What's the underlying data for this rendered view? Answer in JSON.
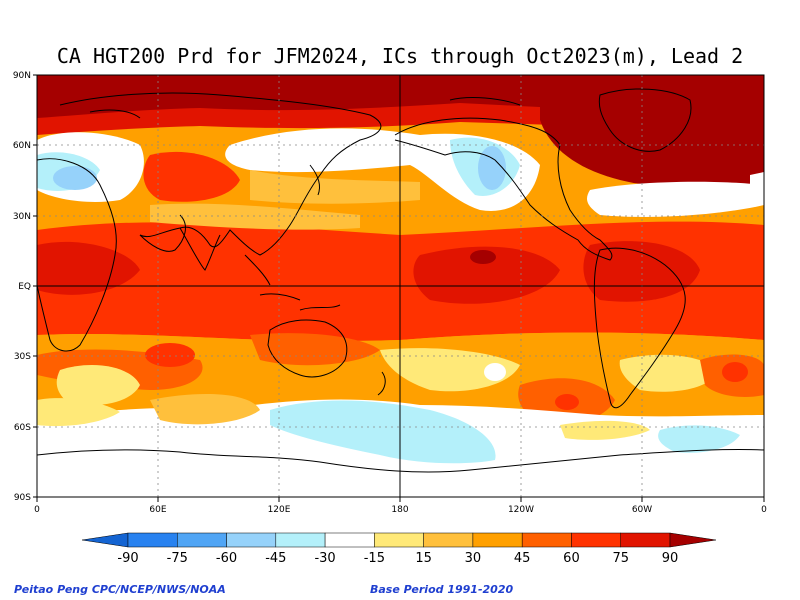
{
  "title": "CA HGT200 Prd for JFM2024, ICs through Oct2023(m), Lead 2",
  "credit_left": "Peitao Peng CPC/NCEP/NWS/NOAA",
  "credit_right": "Base Period 1991-2020",
  "lat_labels": [
    "90N",
    "60N",
    "30N",
    "EQ",
    "30S",
    "60S",
    "90S"
  ],
  "lon_labels": [
    "0",
    "60E",
    "120E",
    "180",
    "120W",
    "60W",
    "0"
  ],
  "colorbar": {
    "labels": [
      "-90",
      "-75",
      "-60",
      "-45",
      "-30",
      "-15",
      "15",
      "30",
      "45",
      "60",
      "75",
      "90"
    ],
    "colors": [
      "#1464d2",
      "#2882f0",
      "#50a5f5",
      "#96d2fa",
      "#b4f0fa",
      "#ffffff",
      "#ffe978",
      "#ffc03c",
      "#ffa000",
      "#ff6000",
      "#ff3200",
      "#e11400",
      "#a50000"
    ]
  }
}
